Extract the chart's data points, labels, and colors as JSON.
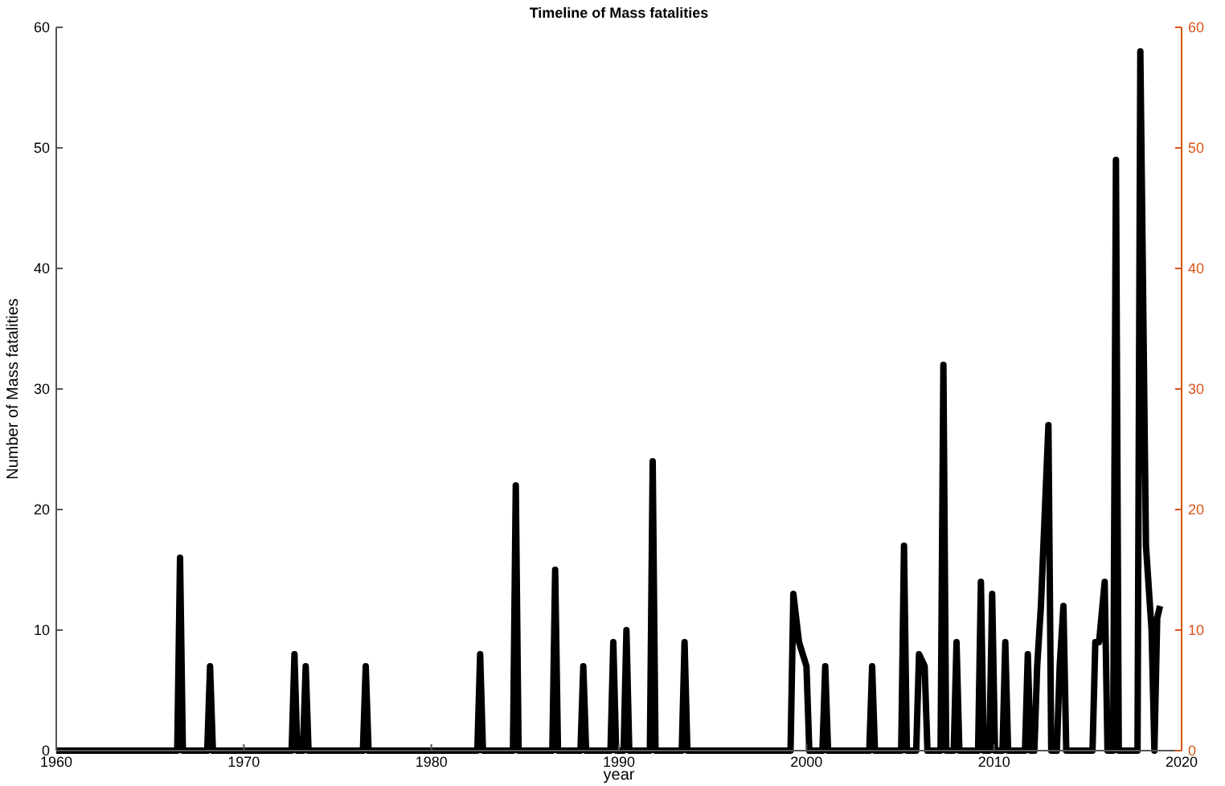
{
  "chart_data": {
    "type": "line",
    "title": "Timeline of Mass fatalities",
    "xlabel": "year",
    "ylabel": "Number of Mass fatalities",
    "xlim": [
      1960,
      2020
    ],
    "xticks": [
      1960,
      1970,
      1980,
      1990,
      2000,
      2010,
      2020
    ],
    "ylim": [
      0,
      60
    ],
    "yticks": [
      0,
      10,
      20,
      30,
      40,
      50,
      60
    ],
    "y2lim": [
      0,
      60
    ],
    "y2ticks": [
      0,
      10,
      20,
      30,
      40,
      50,
      60
    ],
    "marker": "none",
    "line_style": "solid",
    "series": [
      {
        "color": "#000000",
        "x": [
          1960,
          1966.45,
          1966.6,
          1966.75,
          1968.05,
          1968.2,
          1968.35,
          1972.55,
          1972.7,
          1972.85,
          1973.15,
          1973.3,
          1973.45,
          1976.35,
          1976.5,
          1976.65,
          1982.45,
          1982.6,
          1982.75,
          1984.35,
          1984.5,
          1984.65,
          1986.45,
          1986.6,
          1986.75,
          1987.95,
          1988.1,
          1988.25,
          1989.55,
          1989.7,
          1989.85,
          1990.25,
          1990.4,
          1990.55,
          1991.65,
          1991.8,
          1991.95,
          1993.35,
          1993.5,
          1993.65,
          1999.15,
          1999.3,
          1999.6,
          1999.8,
          2000.0,
          2000.15,
          2000.85,
          2001.0,
          2001.15,
          2003.35,
          2003.5,
          2003.65,
          2005.05,
          2005.2,
          2005.35,
          2005.85,
          2006.0,
          2006.3,
          2006.45,
          2007.15,
          2007.3,
          2007.45,
          2007.85,
          2008.0,
          2008.15,
          2009.15,
          2009.3,
          2009.45,
          2009.75,
          2009.9,
          2010.05,
          2010.45,
          2010.6,
          2010.75,
          2011.65,
          2011.8,
          2011.95,
          2012.15,
          2012.3,
          2012.5,
          2012.9,
          2013.05,
          2013.35,
          2013.5,
          2013.7,
          2013.85,
          2015.25,
          2015.4,
          2015.6,
          2015.9,
          2016.05,
          2016.35,
          2016.5,
          2016.65,
          2017.65,
          2017.8,
          2018.1,
          2018.4,
          2018.55,
          2018.7,
          2018.85
        ],
        "values": [
          0,
          0,
          16,
          0,
          0,
          7,
          0,
          0,
          8,
          0,
          0,
          7,
          0,
          0,
          7,
          0,
          0,
          8,
          0,
          0,
          22,
          0,
          0,
          15,
          0,
          0,
          7,
          0,
          0,
          9,
          0,
          0,
          10,
          0,
          0,
          24,
          0,
          0,
          9,
          0,
          0,
          13,
          9,
          8,
          7,
          0,
          0,
          7,
          0,
          0,
          7,
          0,
          0,
          17,
          0,
          0,
          8,
          7,
          0,
          0,
          32,
          0,
          0,
          9,
          0,
          0,
          14,
          0,
          0,
          13,
          0,
          0,
          9,
          0,
          0,
          8,
          0,
          0,
          7,
          12,
          27,
          0,
          0,
          7,
          12,
          0,
          0,
          9,
          9,
          14,
          0,
          0,
          49,
          0,
          0,
          58,
          17,
          10,
          0,
          11,
          12
        ]
      }
    ]
  }
}
